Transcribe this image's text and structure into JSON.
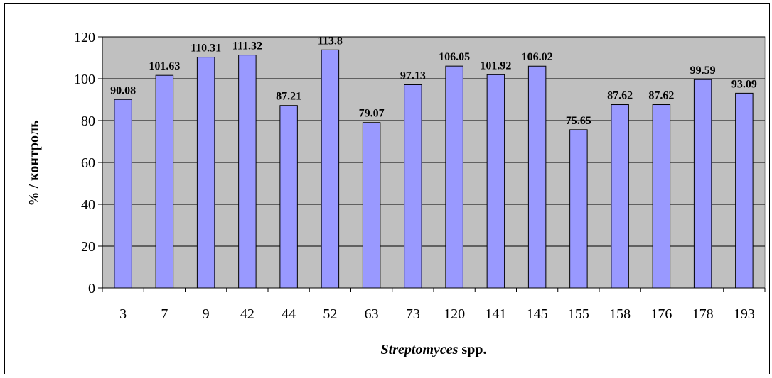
{
  "chart_data": {
    "type": "bar",
    "categories": [
      "3",
      "7",
      "9",
      "42",
      "44",
      "52",
      "63",
      "73",
      "120",
      "141",
      "145",
      "155",
      "158",
      "176",
      "178",
      "193"
    ],
    "values": [
      90.08,
      101.63,
      110.31,
      111.32,
      87.21,
      113.8,
      79.07,
      97.13,
      106.05,
      101.92,
      106.02,
      75.65,
      87.62,
      87.62,
      99.59,
      93.09
    ],
    "data_labels": [
      "90.08",
      "101.63",
      "110.31",
      "111.32",
      "87.21",
      "113.8",
      "79.07",
      "97.13",
      "106.05",
      "101.92",
      "106.02",
      "75.65",
      "87.62",
      "87.62",
      "99.59",
      "93.09"
    ],
    "title": "",
    "xlabel_italic": "Streptomyces",
    "xlabel_rest": " spp.",
    "ylabel": "% / контроль",
    "ylim": [
      0,
      120
    ],
    "yticks": [
      0,
      20,
      40,
      60,
      80,
      100,
      120
    ],
    "grid": true,
    "colors": {
      "plot_background": "#c0c0c0",
      "bar_fill": "#9999ff",
      "bar_stroke": "#000000",
      "gridline": "#000000"
    }
  }
}
